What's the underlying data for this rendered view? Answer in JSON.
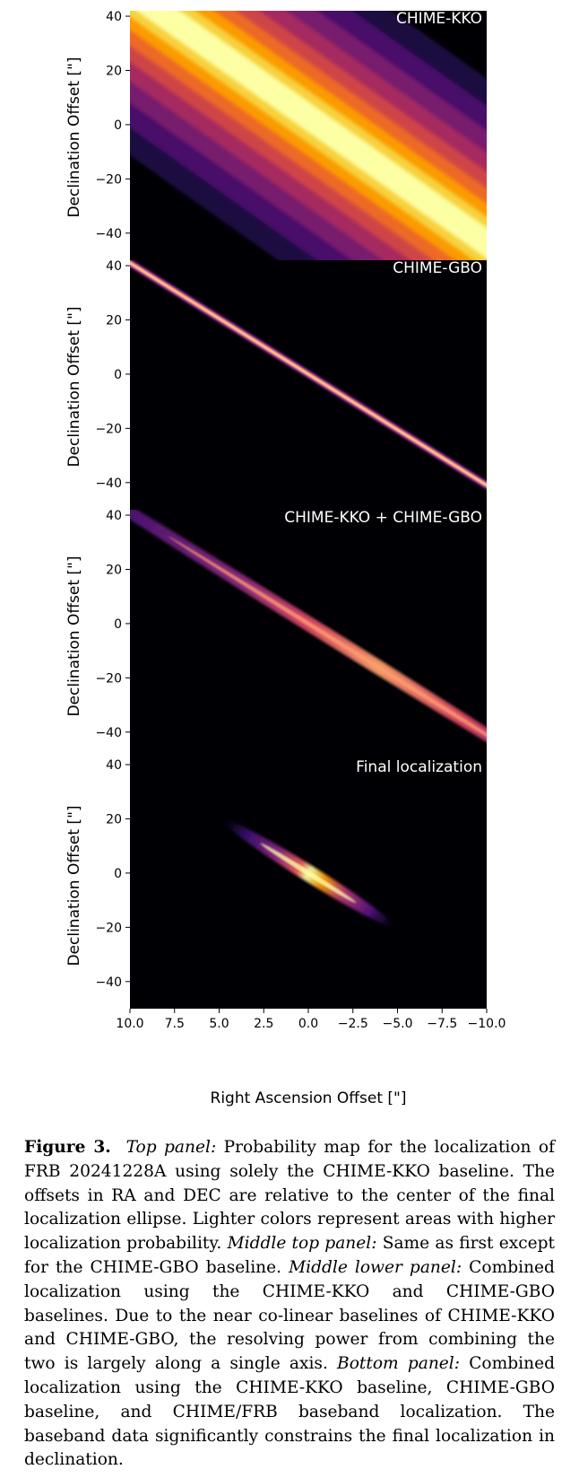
{
  "chart_data": [
    {
      "type": "heatmap",
      "title": "CHIME-KKO",
      "ylabel": "Declination Offset [\"]",
      "xlim": [
        10.0,
        -10.0
      ],
      "ylim": [
        -50,
        42
      ],
      "yticks": [
        40,
        20,
        0,
        -20,
        -40
      ],
      "ytick_labels": [
        "40",
        "20",
        "0",
        "−20",
        "−40"
      ],
      "band": {
        "slope_dec_per_ra": 4.6,
        "center_ra_at_dec0": 0.0,
        "sigma_arcsec": 18
      }
    },
    {
      "type": "heatmap",
      "title": "CHIME-GBO",
      "ylabel": "Declination Offset [\"]",
      "xlim": [
        10.0,
        -10.0
      ],
      "ylim": [
        -50,
        42
      ],
      "yticks": [
        40,
        20,
        0,
        -20,
        -40
      ],
      "ytick_labels": [
        "40",
        "20",
        "0",
        "−20",
        "−40"
      ],
      "band": {
        "slope_dec_per_ra": 4.1,
        "center_ra_at_dec0": 0.0,
        "sigma_arcsec": 0.6
      }
    },
    {
      "type": "heatmap",
      "title": "CHIME-KKO + CHIME-GBO",
      "ylabel": "Declination Offset [\"]",
      "xlim": [
        10.0,
        -10.0
      ],
      "ylim": [
        -50,
        42
      ],
      "yticks": [
        40,
        20,
        0,
        -20,
        -40
      ],
      "ytick_labels": [
        "40",
        "20",
        "0",
        "−20",
        "−40"
      ],
      "band": {
        "slope_dec_per_ra": 4.1,
        "center_ra_at_dec0": 0.0,
        "sigma_arcsec": 0.9,
        "along_extent_arcsec": 40
      }
    },
    {
      "type": "heatmap",
      "title": "Final localization",
      "ylabel": "Declination Offset [\"]",
      "xlabel": "Right Ascension Offset [\"]",
      "xlim": [
        10.0,
        -10.0
      ],
      "ylim": [
        -50,
        42
      ],
      "xticks": [
        10.0,
        7.5,
        5.0,
        2.5,
        0.0,
        -2.5,
        -5.0,
        -7.5,
        -10.0
      ],
      "xtick_labels": [
        "10.0",
        "7.5",
        "5.0",
        "2.5",
        "0.0",
        "−2.5",
        "−5.0",
        "−7.5",
        "−10.0"
      ],
      "yticks": [
        40,
        20,
        0,
        -20,
        -40
      ],
      "ytick_labels": [
        "40",
        "20",
        "0",
        "−20",
        "−40"
      ],
      "band": {
        "slope_dec_per_ra": 4.1,
        "center_ra_at_dec0": 0.0,
        "sigma_arcsec": 0.9,
        "along_extent_arcsec": 18
      }
    }
  ],
  "caption": {
    "label": "Figure 3.",
    "top_label": "Top panel:",
    "top_text": "Probability map for the localization of FRB 20241228A using solely the CHIME-KKO baseline. The offsets in RA and DEC are relative to the center of the final localization ellipse. Lighter colors represent areas with higher localization probability.",
    "middle_top_label": "Middle top panel:",
    "middle_top_text": "Same as first except for the CHIME-GBO baseline.",
    "middle_lower_label": "Middle lower panel:",
    "middle_lower_text": "Combined localization using the CHIME-KKO and CHIME-GBO baselines. Due to the near co-linear baselines of CHIME-KKO and CHIME-GBO, the resolving power from combining the two is largely along a single axis.",
    "bottom_label": "Bottom panel:",
    "bottom_text": "Combined localization using the CHIME-KKO baseline, CHIME-GBO baseline, and CHIME/FRB baseband localization. The baseband data significantly constrains the final localization in declination."
  }
}
